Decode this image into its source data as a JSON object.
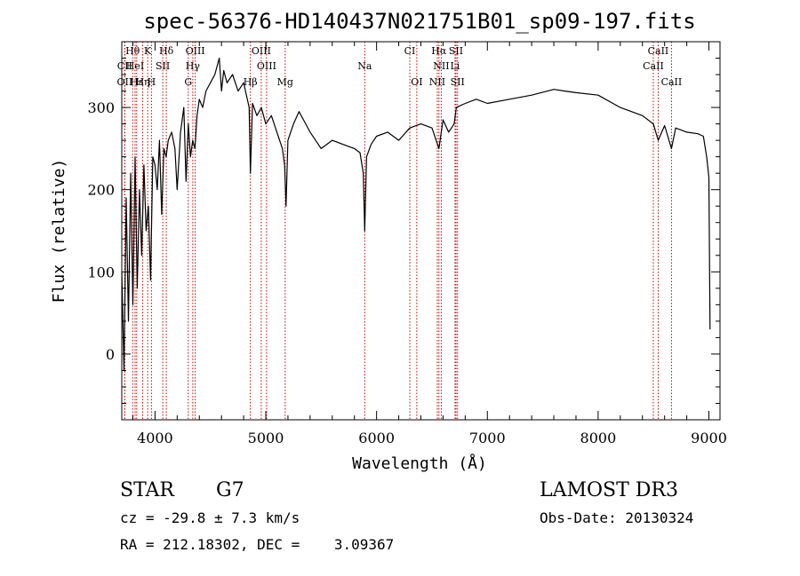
{
  "chart_data": {
    "type": "line",
    "title": "spec-56376-HD140437N021751B01_sp09-197.fits",
    "xlabel": "Wavelength (Å)",
    "ylabel": "Flux (relative)",
    "xlim": [
      3700,
      9100
    ],
    "ylim": [
      -80,
      380
    ],
    "xticks": [
      4000,
      5000,
      6000,
      7000,
      8000,
      9000
    ],
    "yticks": [
      0,
      100,
      200,
      300
    ],
    "grid": false,
    "series": [
      {
        "x": [
          3700,
          3720,
          3740,
          3760,
          3780,
          3800,
          3820,
          3840,
          3860,
          3880,
          3900,
          3920,
          3940,
          3960,
          3980,
          4000,
          4020,
          4040,
          4060,
          4080,
          4100,
          4120,
          4150,
          4180,
          4200,
          4230,
          4260,
          4280,
          4300,
          4320,
          4340,
          4360,
          4380,
          4400,
          4430,
          4460,
          4500,
          4540,
          4580,
          4600,
          4620,
          4650,
          4700,
          4750,
          4800,
          4850,
          4861,
          4880,
          4920,
          4960,
          5000,
          5050,
          5100,
          5150,
          5170,
          5183,
          5200,
          5250,
          5300,
          5400,
          5500,
          5600,
          5700,
          5800,
          5850,
          5880,
          5893,
          5910,
          5950,
          6000,
          6100,
          6200,
          6300,
          6400,
          6500,
          6563,
          6600,
          6650,
          6700,
          6720,
          6800,
          6900,
          7000,
          7200,
          7400,
          7600,
          7700,
          7800,
          8000,
          8200,
          8400,
          8498,
          8542,
          8600,
          8662,
          8700,
          8800,
          8900,
          8950,
          8980,
          9000,
          9010
        ],
        "y": [
          100,
          -20,
          190,
          40,
          220,
          60,
          240,
          80,
          200,
          120,
          230,
          150,
          180,
          90,
          240,
          230,
          200,
          260,
          170,
          250,
          240,
          260,
          270,
          250,
          200,
          270,
          300,
          210,
          280,
          240,
          260,
          250,
          290,
          310,
          300,
          320,
          330,
          340,
          360,
          320,
          345,
          330,
          340,
          320,
          330,
          300,
          220,
          305,
          290,
          300,
          280,
          290,
          270,
          250,
          230,
          180,
          260,
          280,
          295,
          270,
          250,
          260,
          255,
          250,
          245,
          220,
          150,
          240,
          255,
          265,
          270,
          260,
          275,
          280,
          275,
          250,
          285,
          270,
          280,
          300,
          305,
          310,
          305,
          310,
          315,
          322,
          320,
          318,
          315,
          300,
          290,
          280,
          260,
          278,
          250,
          275,
          270,
          268,
          265,
          240,
          215,
          30
        ]
      }
    ],
    "lines_top": [
      {
        "label": "Hθ",
        "x": 3798
      },
      {
        "label": "K",
        "x": 3934
      },
      {
        "label": "Hδ",
        "x": 4102
      },
      {
        "label": "OIII",
        "x": 4363
      },
      {
        "label": "OIII",
        "x": 4959
      },
      {
        "label": "CI",
        "x": 6300
      },
      {
        "label": "Hα",
        "x": 6563
      },
      {
        "label": "SII",
        "x": 6717
      },
      {
        "label": "CaII",
        "x": 8542
      }
    ],
    "lines_mid": [
      {
        "label": "CII",
        "x": 3727
      },
      {
        "label": "HeI",
        "x": 3820
      },
      {
        "label": "SII",
        "x": 4070
      },
      {
        "label": "Hγ",
        "x": 4341
      },
      {
        "label": "OIII",
        "x": 5007
      },
      {
        "label": "Na",
        "x": 5893
      },
      {
        "label": "NII",
        "x": 6584
      },
      {
        "label": "Li",
        "x": 6708
      },
      {
        "label": "CaII",
        "x": 8498
      }
    ],
    "lines_bot": [
      {
        "label": "OII",
        "x": 3727
      },
      {
        "label": "Hε",
        "x": 3835
      },
      {
        "label": "Hη",
        "x": 3889
      },
      {
        "label": "H",
        "x": 3968
      },
      {
        "label": "G",
        "x": 4300
      },
      {
        "label": "Hβ",
        "x": 4861
      },
      {
        "label": "Mg",
        "x": 5175
      },
      {
        "label": "OI",
        "x": 6363
      },
      {
        "label": "NII",
        "x": 6548
      },
      {
        "label": "SII",
        "x": 6731
      },
      {
        "label": "CaII",
        "x": 8662
      }
    ]
  },
  "info": {
    "class_label": "STAR",
    "subclass_label": "G7",
    "survey_label": "LAMOST DR3",
    "cz_label": "cz = -29.8 ± 7.3 km/s",
    "obs_date_label": "Obs-Date: 20130324",
    "radec_label": "RA = 212.18302, DEC =    3.09367"
  },
  "colors": {
    "spectrum": "#000000",
    "line_markers": "#cc0000",
    "axes": "#000000"
  }
}
